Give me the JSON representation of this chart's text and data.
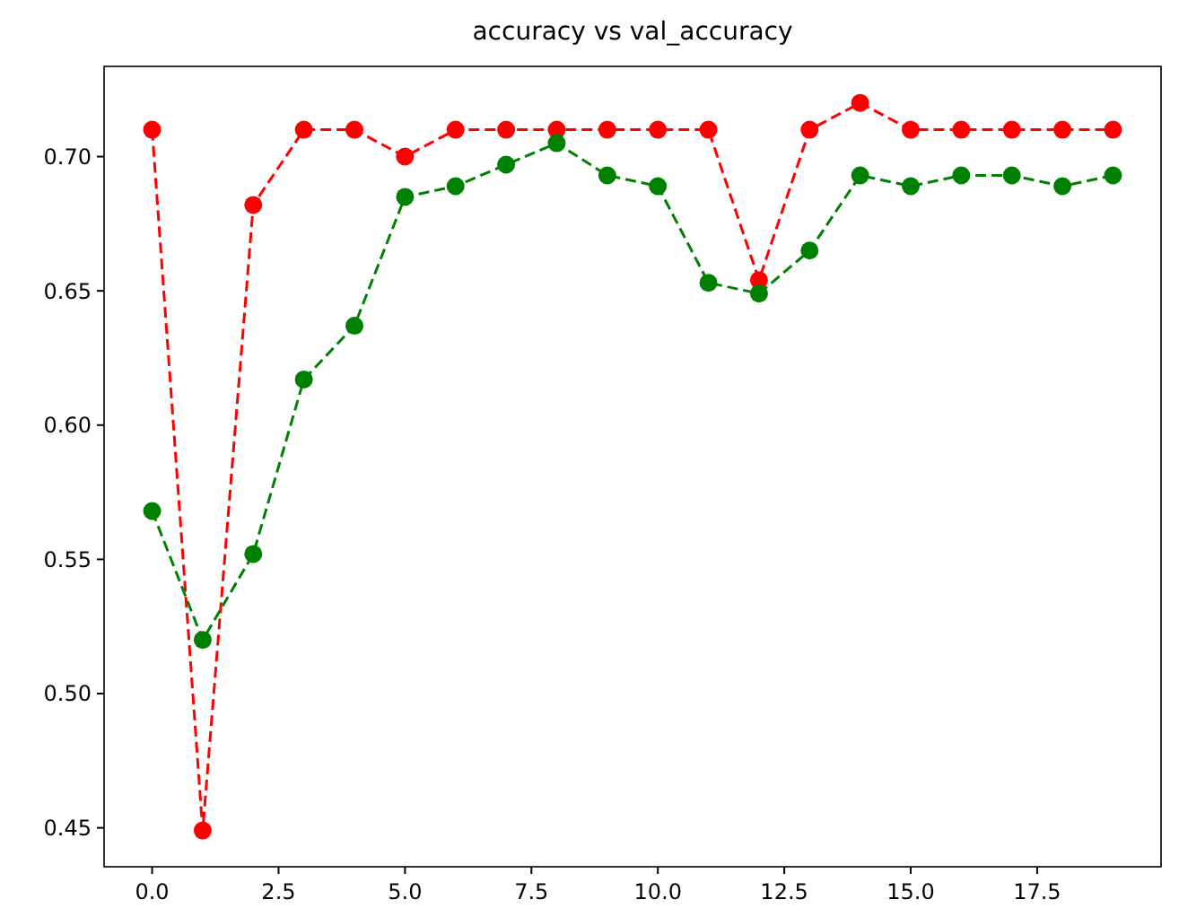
{
  "chart_data": {
    "type": "line",
    "title": "accuracy vs val_accuracy",
    "x": [
      0,
      1,
      2,
      3,
      4,
      5,
      6,
      7,
      8,
      9,
      10,
      11,
      12,
      13,
      14,
      15,
      16,
      17,
      18,
      19
    ],
    "series": [
      {
        "color": "#ff0000",
        "values": [
          0.71,
          0.449,
          0.682,
          0.71,
          0.71,
          0.7,
          0.71,
          0.71,
          0.71,
          0.71,
          0.71,
          0.71,
          0.654,
          0.71,
          0.72,
          0.71,
          0.71,
          0.71,
          0.71,
          0.71
        ]
      },
      {
        "color": "#008000",
        "values": [
          0.568,
          0.52,
          0.552,
          0.617,
          0.637,
          0.685,
          0.689,
          0.697,
          0.705,
          0.693,
          0.689,
          0.653,
          0.649,
          0.665,
          0.693,
          0.689,
          0.693,
          0.693,
          0.689,
          0.693
        ]
      }
    ],
    "xlim": [
      -0.95,
      19.95
    ],
    "xticks": [
      {
        "value": 0,
        "label": "0.0"
      },
      {
        "value": 2.5,
        "label": "2.5"
      },
      {
        "value": 5,
        "label": "5.0"
      },
      {
        "value": 7.5,
        "label": "7.5"
      },
      {
        "value": 10,
        "label": "10.0"
      },
      {
        "value": 12.5,
        "label": "12.5"
      },
      {
        "value": 15,
        "label": "15.0"
      },
      {
        "value": 17.5,
        "label": "17.5"
      }
    ],
    "ylim": [
      0.4355,
      0.7336
    ],
    "yticks": [
      {
        "value": 0.45,
        "label": "0.45"
      },
      {
        "value": 0.5,
        "label": "0.50"
      },
      {
        "value": 0.55,
        "label": "0.55"
      },
      {
        "value": 0.6,
        "label": "0.60"
      },
      {
        "value": 0.65,
        "label": "0.65"
      },
      {
        "value": 0.7,
        "label": "0.70"
      }
    ],
    "marker": "circle",
    "line_style": "dashed",
    "grid": false
  }
}
